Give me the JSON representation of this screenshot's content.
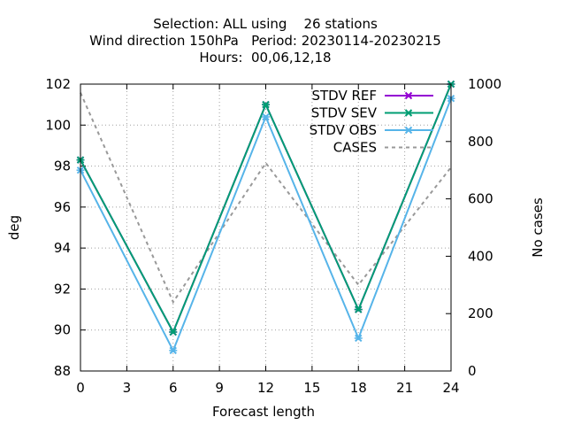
{
  "chart_data": {
    "type": "line",
    "title_lines": [
      "Selection: ALL using    26 stations",
      "Wind direction 150hPa   Period: 20230114-20230215",
      "Hours:  00,06,12,18"
    ],
    "xlabel": "Forecast length",
    "ylabel": "deg",
    "y2label": "No cases",
    "x": [
      0,
      6,
      12,
      18,
      24
    ],
    "xticks": [
      0,
      3,
      6,
      9,
      12,
      15,
      18,
      21,
      24
    ],
    "xlim": [
      0,
      24
    ],
    "ylim": [
      88,
      102
    ],
    "yticks": [
      88,
      90,
      92,
      94,
      96,
      98,
      100,
      102
    ],
    "y2lim": [
      0,
      1000
    ],
    "y2ticks": [
      0,
      200,
      400,
      600,
      800,
      1000
    ],
    "grid": true,
    "legend_position": "top-right",
    "series": [
      {
        "name": "STDV REF",
        "axis": "y",
        "color": "#9400d3",
        "marker": "cross",
        "dash": "solid",
        "values": [
          98.3,
          89.9,
          101.0,
          91.0,
          102.0
        ]
      },
      {
        "name": "STDV SEV",
        "axis": "y",
        "color": "#009e73",
        "marker": "cross",
        "dash": "solid",
        "values": [
          98.3,
          89.9,
          101.0,
          91.0,
          102.0
        ]
      },
      {
        "name": "STDV OBS",
        "axis": "y",
        "color": "#56b4e9",
        "marker": "cross",
        "dash": "solid",
        "values": [
          97.8,
          89.0,
          100.4,
          89.6,
          101.3
        ]
      },
      {
        "name": "CASES",
        "axis": "y2",
        "color": "#999999",
        "marker": "none",
        "dash": "dashed",
        "values": [
          970,
          240,
          725,
          300,
          710
        ]
      }
    ]
  }
}
